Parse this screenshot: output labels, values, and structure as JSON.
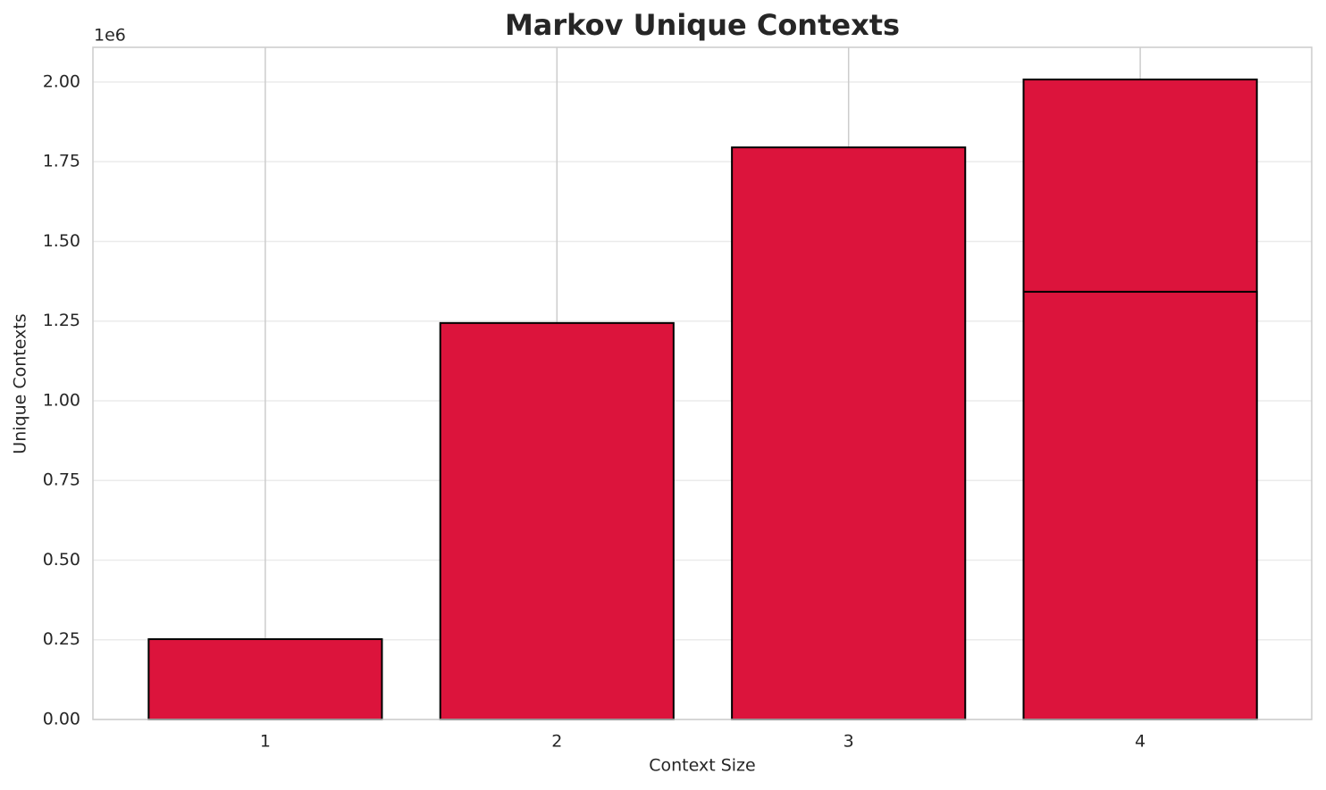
{
  "chart_data": {
    "type": "bar",
    "title": "Markov Unique Contexts",
    "x_label": "Context Size",
    "y_label": "Unique Contexts",
    "y_offset_label": "1e6",
    "x": [
      1,
      2,
      3,
      4,
      4
    ],
    "values": [
      252000,
      1244000,
      1795000,
      2008000,
      1342000
    ],
    "color": "#dc143c",
    "edge_color": "#000000",
    "xlim": [
      0.409,
      4.588
    ],
    "xticks": [
      1,
      2,
      3,
      4
    ],
    "ylim": [
      0,
      2109000
    ],
    "yticks": [
      {
        "value": 0,
        "label": "0.00"
      },
      {
        "value": 250000,
        "label": "0.25"
      },
      {
        "value": 500000,
        "label": "0.50"
      },
      {
        "value": 750000,
        "label": "0.75"
      },
      {
        "value": 1000000,
        "label": "1.00"
      },
      {
        "value": 1250000,
        "label": "1.25"
      },
      {
        "value": 1500000,
        "label": "1.50"
      },
      {
        "value": 1750000,
        "label": "1.75"
      },
      {
        "value": 2000000,
        "label": "2.00"
      }
    ],
    "grid": true
  }
}
